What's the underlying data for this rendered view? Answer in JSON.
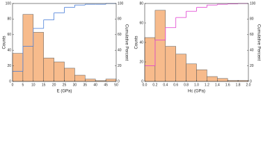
{
  "chart_data": [
    {
      "type": "histogram",
      "xlabel": "E (GPa)",
      "ylabel": "Counts",
      "y2label": "Cumulative Percent",
      "bins": [
        0,
        5,
        10,
        15,
        20,
        25,
        30,
        35,
        40,
        45,
        50
      ],
      "values": [
        36,
        86,
        63,
        30,
        25,
        17,
        8,
        3,
        1,
        3
      ],
      "color": "#f7bb8c",
      "cumulative": {
        "values": [
          13,
          45,
          68,
          79,
          88,
          95,
          98,
          99,
          99,
          100
        ],
        "color": "#4a7fd8",
        "axis": "y2"
      },
      "xlim": [
        0,
        50
      ],
      "xticks": [
        0,
        5,
        10,
        15,
        20,
        25,
        30,
        35,
        40,
        45,
        50
      ],
      "ylim": [
        0,
        100
      ],
      "yticks": [
        0,
        20,
        40,
        60,
        80,
        100
      ],
      "y2lim": [
        0,
        100
      ],
      "y2ticks": [
        0,
        20,
        40,
        60,
        80,
        100
      ]
    },
    {
      "type": "histogram",
      "xlabel": "Hc (GPa)",
      "ylabel": "Counts",
      "y2label": "Cumulative Percent",
      "bins": [
        0,
        0.2,
        0.4,
        0.6,
        0.8,
        1,
        1.2,
        1.4,
        1.6,
        1.8,
        2
      ],
      "values": [
        45,
        73,
        36,
        28,
        18,
        12,
        5,
        3,
        1,
        1
      ],
      "color": "#f7bb8c",
      "cumulative": {
        "values": [
          20,
          53,
          69,
          82,
          90,
          95,
          98,
          99,
          99.5,
          100
        ],
        "color": "#e040d0",
        "axis": "y2"
      },
      "xlim": [
        0,
        2
      ],
      "xticks": [
        {
          "value": 0,
          "label": "0.0"
        },
        0.2,
        0.4,
        0.6,
        0.8,
        {
          "value": 1,
          "label": "1.0"
        },
        1.2,
        1.4,
        1.6,
        1.8,
        {
          "value": 2,
          "label": "2.0"
        }
      ],
      "ylim": [
        0,
        80
      ],
      "yticks": [
        0,
        20,
        40,
        60,
        80
      ],
      "y2lim": [
        0,
        100
      ],
      "y2ticks": [
        0,
        20,
        40,
        60,
        80,
        100
      ]
    }
  ]
}
